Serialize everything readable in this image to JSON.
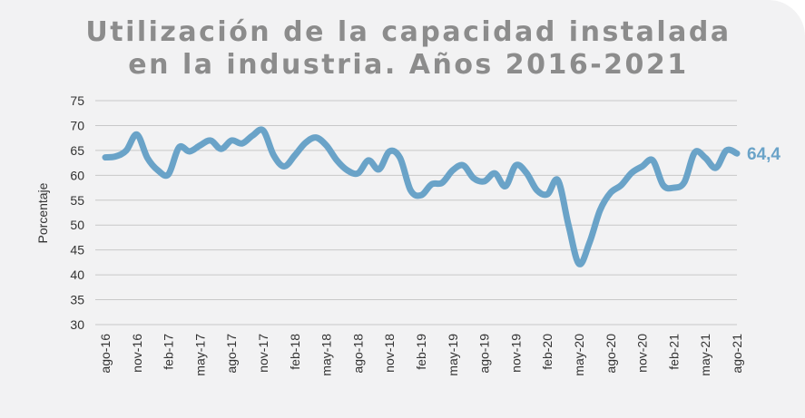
{
  "chart_data": {
    "type": "line",
    "title_lines": [
      "Utilización de la capacidad instalada",
      "en la industria. Años 2016-2021"
    ],
    "xlabel": "",
    "ylabel": "Porcentaje",
    "ylim": [
      30,
      75
    ],
    "yticks": [
      30,
      35,
      40,
      45,
      50,
      55,
      60,
      65,
      70,
      75
    ],
    "grid": true,
    "xtick_labels": [
      "ago-16",
      "nov-16",
      "feb-17",
      "may-17",
      "ago-17",
      "nov-17",
      "feb-18",
      "may-18",
      "ago-18",
      "nov-18",
      "feb-19",
      "may-19",
      "ago-19",
      "nov-19",
      "feb-20",
      "may-20",
      "ago-20",
      "nov-20",
      "feb-21",
      "may-21",
      "ago-21"
    ],
    "x": [
      "ago-16",
      "sep-16",
      "oct-16",
      "nov-16",
      "dic-16",
      "ene-17",
      "feb-17",
      "mar-17",
      "abr-17",
      "may-17",
      "jun-17",
      "jul-17",
      "ago-17",
      "sep-17",
      "oct-17",
      "nov-17",
      "dic-17",
      "ene-18",
      "feb-18",
      "mar-18",
      "abr-18",
      "may-18",
      "jun-18",
      "jul-18",
      "ago-18",
      "sep-18",
      "oct-18",
      "nov-18",
      "dic-18",
      "ene-19",
      "feb-19",
      "mar-19",
      "abr-19",
      "may-19",
      "jun-19",
      "jul-19",
      "ago-19",
      "sep-19",
      "oct-19",
      "nov-19",
      "dic-19",
      "ene-20",
      "feb-20",
      "mar-20",
      "abr-20",
      "may-20",
      "jun-20",
      "jul-20",
      "ago-20",
      "sep-20",
      "oct-20",
      "nov-20",
      "dic-20",
      "ene-21",
      "feb-21",
      "mar-21",
      "abr-21",
      "may-21",
      "jun-21",
      "jul-21",
      "ago-21"
    ],
    "series": [
      {
        "values": [
          63.6,
          63.8,
          65.0,
          68.2,
          63.5,
          61.0,
          60.2,
          65.6,
          64.8,
          66.0,
          67.0,
          65.3,
          67.0,
          66.4,
          68.0,
          69.0,
          64.0,
          61.8,
          64.0,
          66.5,
          67.6,
          66.0,
          63.0,
          61.0,
          60.4,
          63.0,
          61.2,
          64.8,
          63.5,
          57.0,
          56.0,
          58.2,
          58.5,
          61.0,
          62.0,
          59.4,
          58.8,
          60.4,
          57.8,
          62.0,
          60.5,
          57.0,
          56.2,
          59.0,
          50.0,
          42.2,
          46.5,
          53.0,
          56.5,
          58.0,
          60.5,
          61.8,
          63.0,
          58.0,
          57.5,
          58.6,
          64.6,
          63.5,
          61.5,
          65.0,
          64.4
        ],
        "color": "#6aa3c8"
      }
    ],
    "last_value_label": "64,4"
  }
}
